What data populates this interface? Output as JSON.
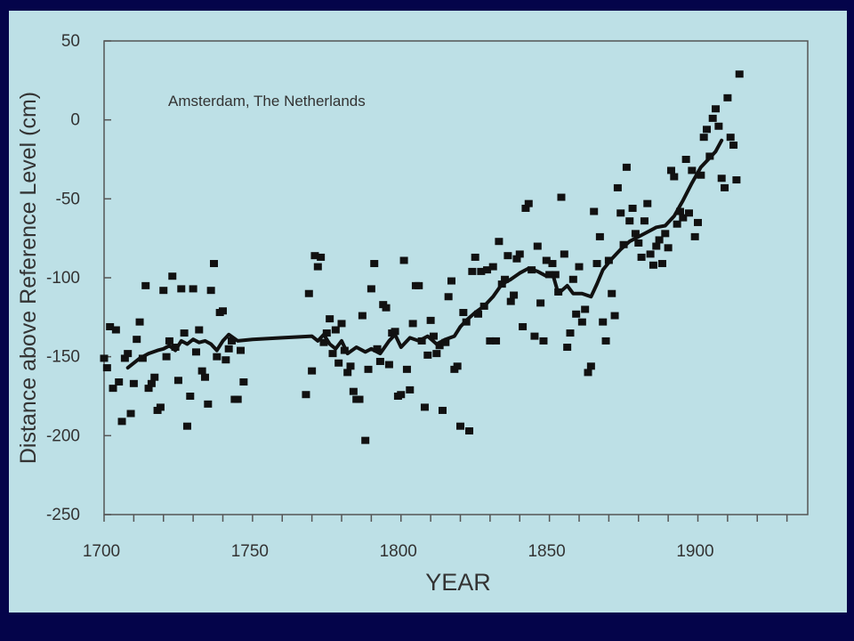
{
  "chart_data": {
    "type": "scatter",
    "title": "",
    "annotation": "Amsterdam, The Netherlands",
    "xlabel": "YEAR",
    "ylabel": "Distance above Reference Level (cm)",
    "xlim": [
      1700,
      1937
    ],
    "ylim": [
      -250,
      50
    ],
    "x_ticks": [
      1700,
      1750,
      1800,
      1850,
      1900
    ],
    "y_ticks": [
      50,
      0,
      -50,
      -100,
      -150,
      -200,
      -250
    ],
    "grid": false,
    "colors": {
      "marks": "#111111",
      "plot_bg": "#bde0e6",
      "frame_bg": "#04044a",
      "axis": "#555555"
    },
    "series": [
      {
        "kind": "points",
        "points": [
          [
            1700,
            -151
          ],
          [
            1701,
            -157
          ],
          [
            1702,
            -131
          ],
          [
            1703,
            -170
          ],
          [
            1704,
            -133
          ],
          [
            1705,
            -166
          ],
          [
            1706,
            -191
          ],
          [
            1707,
            -151
          ],
          [
            1708,
            -148
          ],
          [
            1709,
            -186
          ],
          [
            1710,
            -167
          ],
          [
            1711,
            -139
          ],
          [
            1712,
            -128
          ],
          [
            1713,
            -151
          ],
          [
            1714,
            -105
          ],
          [
            1715,
            -170
          ],
          [
            1716,
            -167
          ],
          [
            1717,
            -163
          ],
          [
            1718,
            -184
          ],
          [
            1719,
            -182
          ],
          [
            1720,
            -108
          ],
          [
            1721,
            -150
          ],
          [
            1722,
            -140
          ],
          [
            1723,
            -99
          ],
          [
            1724,
            -144
          ],
          [
            1725,
            -165
          ],
          [
            1726,
            -107
          ],
          [
            1727,
            -135
          ],
          [
            1728,
            -194
          ],
          [
            1729,
            -175
          ],
          [
            1730,
            -107
          ],
          [
            1731,
            -147
          ],
          [
            1732,
            -133
          ],
          [
            1733,
            -159
          ],
          [
            1734,
            -163
          ],
          [
            1735,
            -180
          ],
          [
            1736,
            -108
          ],
          [
            1737,
            -91
          ],
          [
            1738,
            -150
          ],
          [
            1739,
            -122
          ],
          [
            1740,
            -121
          ],
          [
            1741,
            -152
          ],
          [
            1742,
            -145
          ],
          [
            1743,
            -140
          ],
          [
            1744,
            -177
          ],
          [
            1745,
            -177
          ],
          [
            1746,
            -146
          ],
          [
            1747,
            -166
          ],
          [
            1768,
            -174
          ],
          [
            1769,
            -110
          ],
          [
            1770,
            -159
          ],
          [
            1771,
            -86
          ],
          [
            1772,
            -93
          ],
          [
            1773,
            -87
          ],
          [
            1774,
            -141
          ],
          [
            1775,
            -135
          ],
          [
            1776,
            -126
          ],
          [
            1777,
            -148
          ],
          [
            1778,
            -133
          ],
          [
            1779,
            -154
          ],
          [
            1780,
            -129
          ],
          [
            1781,
            -146
          ],
          [
            1782,
            -160
          ],
          [
            1783,
            -156
          ],
          [
            1784,
            -172
          ],
          [
            1785,
            -177
          ],
          [
            1786,
            -177
          ],
          [
            1787,
            -124
          ],
          [
            1788,
            -203
          ],
          [
            1789,
            -158
          ],
          [
            1790,
            -107
          ],
          [
            1791,
            -91
          ],
          [
            1792,
            -145
          ],
          [
            1793,
            -153
          ],
          [
            1794,
            -117
          ],
          [
            1795,
            -119
          ],
          [
            1796,
            -155
          ],
          [
            1797,
            -135
          ],
          [
            1798,
            -134
          ],
          [
            1799,
            -175
          ],
          [
            1800,
            -174
          ],
          [
            1801,
            -89
          ],
          [
            1802,
            -158
          ],
          [
            1803,
            -171
          ],
          [
            1804,
            -129
          ],
          [
            1805,
            -105
          ],
          [
            1806,
            -105
          ],
          [
            1807,
            -140
          ],
          [
            1808,
            -182
          ],
          [
            1809,
            -149
          ],
          [
            1810,
            -127
          ],
          [
            1811,
            -137
          ],
          [
            1812,
            -148
          ],
          [
            1813,
            -143
          ],
          [
            1814,
            -184
          ],
          [
            1815,
            -141
          ],
          [
            1816,
            -112
          ],
          [
            1817,
            -102
          ],
          [
            1818,
            -158
          ],
          [
            1819,
            -156
          ],
          [
            1820,
            -194
          ],
          [
            1821,
            -122
          ],
          [
            1822,
            -128
          ],
          [
            1823,
            -197
          ],
          [
            1824,
            -96
          ],
          [
            1825,
            -87
          ],
          [
            1826,
            -123
          ],
          [
            1827,
            -96
          ],
          [
            1828,
            -118
          ],
          [
            1829,
            -95
          ],
          [
            1830,
            -140
          ],
          [
            1831,
            -93
          ],
          [
            1832,
            -140
          ],
          [
            1833,
            -77
          ],
          [
            1834,
            -104
          ],
          [
            1835,
            -101
          ],
          [
            1836,
            -86
          ],
          [
            1837,
            -115
          ],
          [
            1838,
            -111
          ],
          [
            1839,
            -88
          ],
          [
            1840,
            -85
          ],
          [
            1841,
            -131
          ],
          [
            1842,
            -56
          ],
          [
            1843,
            -53
          ],
          [
            1844,
            -95
          ],
          [
            1845,
            -137
          ],
          [
            1846,
            -80
          ],
          [
            1847,
            -116
          ],
          [
            1848,
            -140
          ],
          [
            1849,
            -89
          ],
          [
            1850,
            -98
          ],
          [
            1851,
            -91
          ],
          [
            1852,
            -98
          ],
          [
            1853,
            -109
          ],
          [
            1854,
            -49
          ],
          [
            1855,
            -85
          ],
          [
            1856,
            -144
          ],
          [
            1857,
            -135
          ],
          [
            1858,
            -101
          ],
          [
            1859,
            -123
          ],
          [
            1860,
            -93
          ],
          [
            1861,
            -128
          ],
          [
            1862,
            -120
          ],
          [
            1863,
            -160
          ],
          [
            1864,
            -156
          ],
          [
            1865,
            -58
          ],
          [
            1866,
            -91
          ],
          [
            1867,
            -74
          ],
          [
            1868,
            -128
          ],
          [
            1869,
            -140
          ],
          [
            1870,
            -89
          ],
          [
            1871,
            -110
          ],
          [
            1872,
            -124
          ],
          [
            1873,
            -43
          ],
          [
            1874,
            -59
          ],
          [
            1875,
            -79
          ],
          [
            1876,
            -30
          ],
          [
            1877,
            -64
          ],
          [
            1878,
            -56
          ],
          [
            1879,
            -72
          ],
          [
            1880,
            -78
          ],
          [
            1881,
            -87
          ],
          [
            1882,
            -64
          ],
          [
            1883,
            -53
          ],
          [
            1884,
            -85
          ],
          [
            1885,
            -92
          ],
          [
            1886,
            -80
          ],
          [
            1887,
            -76
          ],
          [
            1888,
            -91
          ],
          [
            1889,
            -72
          ],
          [
            1890,
            -81
          ],
          [
            1891,
            -32
          ],
          [
            1892,
            -36
          ],
          [
            1893,
            -66
          ],
          [
            1894,
            -58
          ],
          [
            1895,
            -62
          ],
          [
            1896,
            -25
          ],
          [
            1897,
            -59
          ],
          [
            1898,
            -32
          ],
          [
            1899,
            -74
          ],
          [
            1900,
            -65
          ],
          [
            1901,
            -35
          ],
          [
            1902,
            -11
          ],
          [
            1903,
            -6
          ],
          [
            1904,
            -23
          ],
          [
            1905,
            1
          ],
          [
            1906,
            7
          ],
          [
            1907,
            -4
          ],
          [
            1908,
            -37
          ],
          [
            1909,
            -43
          ],
          [
            1910,
            14
          ],
          [
            1911,
            -11
          ],
          [
            1912,
            -16
          ],
          [
            1913,
            -38
          ],
          [
            1914,
            29
          ]
        ]
      },
      {
        "kind": "line",
        "points": [
          [
            1708,
            -157
          ],
          [
            1712,
            -151
          ],
          [
            1715,
            -148
          ],
          [
            1718,
            -146
          ],
          [
            1720,
            -145
          ],
          [
            1722,
            -143
          ],
          [
            1724,
            -146
          ],
          [
            1726,
            -140
          ],
          [
            1728,
            -142
          ],
          [
            1730,
            -139
          ],
          [
            1732,
            -141
          ],
          [
            1734,
            -140
          ],
          [
            1736,
            -142
          ],
          [
            1738,
            -146
          ],
          [
            1740,
            -140
          ],
          [
            1742,
            -136
          ],
          [
            1745,
            -140
          ],
          [
            1750,
            -139
          ],
          [
            1760,
            -138
          ],
          [
            1770,
            -137
          ],
          [
            1772,
            -140
          ],
          [
            1774,
            -136
          ],
          [
            1776,
            -142
          ],
          [
            1778,
            -145
          ],
          [
            1780,
            -140
          ],
          [
            1782,
            -148
          ],
          [
            1785,
            -144
          ],
          [
            1788,
            -147
          ],
          [
            1790,
            -145
          ],
          [
            1793,
            -148
          ],
          [
            1796,
            -140
          ],
          [
            1798,
            -136
          ],
          [
            1800,
            -144
          ],
          [
            1803,
            -138
          ],
          [
            1806,
            -140
          ],
          [
            1809,
            -137
          ],
          [
            1812,
            -142
          ],
          [
            1815,
            -139
          ],
          [
            1818,
            -137
          ],
          [
            1820,
            -131
          ],
          [
            1822,
            -127
          ],
          [
            1825,
            -122
          ],
          [
            1828,
            -118
          ],
          [
            1831,
            -112
          ],
          [
            1834,
            -104
          ],
          [
            1837,
            -101
          ],
          [
            1840,
            -97
          ],
          [
            1843,
            -94
          ],
          [
            1846,
            -96
          ],
          [
            1849,
            -99
          ],
          [
            1851,
            -97
          ],
          [
            1853,
            -110
          ],
          [
            1856,
            -105
          ],
          [
            1858,
            -110
          ],
          [
            1861,
            -110
          ],
          [
            1864,
            -112
          ],
          [
            1866,
            -104
          ],
          [
            1868,
            -95
          ],
          [
            1871,
            -88
          ],
          [
            1874,
            -82
          ],
          [
            1877,
            -77
          ],
          [
            1880,
            -74
          ],
          [
            1883,
            -71
          ],
          [
            1886,
            -68
          ],
          [
            1889,
            -67
          ],
          [
            1892,
            -61
          ],
          [
            1895,
            -51
          ],
          [
            1898,
            -40
          ],
          [
            1901,
            -30
          ],
          [
            1904,
            -24
          ],
          [
            1906,
            -20
          ],
          [
            1908,
            -13
          ]
        ]
      }
    ]
  }
}
